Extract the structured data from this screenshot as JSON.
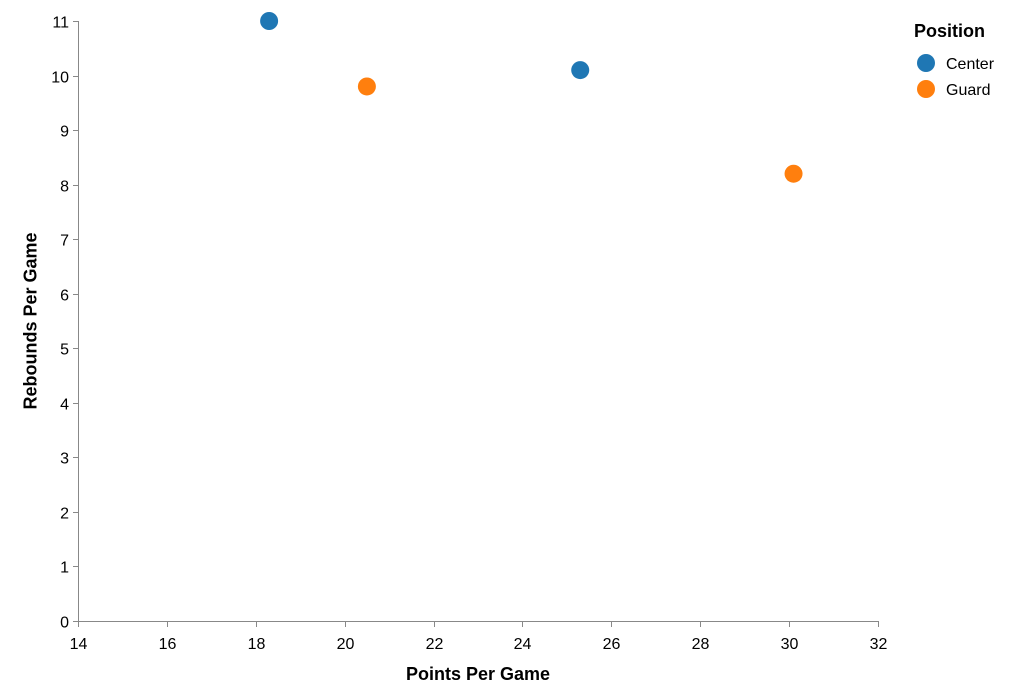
{
  "chart_data": {
    "type": "scatter",
    "xlabel": "Points Per Game",
    "ylabel": "Rebounds Per Game",
    "xlim": [
      14,
      32
    ],
    "ylim": [
      0,
      11
    ],
    "x_ticks": [
      14,
      16,
      18,
      20,
      22,
      24,
      26,
      28,
      30,
      32
    ],
    "y_ticks": [
      0,
      1,
      2,
      3,
      4,
      5,
      6,
      7,
      8,
      9,
      10,
      11
    ],
    "grid": false,
    "legend": {
      "title": "Position",
      "placement": "top-right",
      "entries": [
        {
          "label": "Center",
          "color": "#1f77b4"
        },
        {
          "label": "Guard",
          "color": "#ff7f0e"
        }
      ]
    },
    "series": [
      {
        "name": "Center",
        "color": "#1f77b4",
        "points": [
          {
            "x": 18.3,
            "y": 11.0
          },
          {
            "x": 25.3,
            "y": 10.1
          }
        ]
      },
      {
        "name": "Guard",
        "color": "#ff7f0e",
        "points": [
          {
            "x": 20.5,
            "y": 9.8
          },
          {
            "x": 30.1,
            "y": 8.2
          }
        ]
      }
    ]
  }
}
